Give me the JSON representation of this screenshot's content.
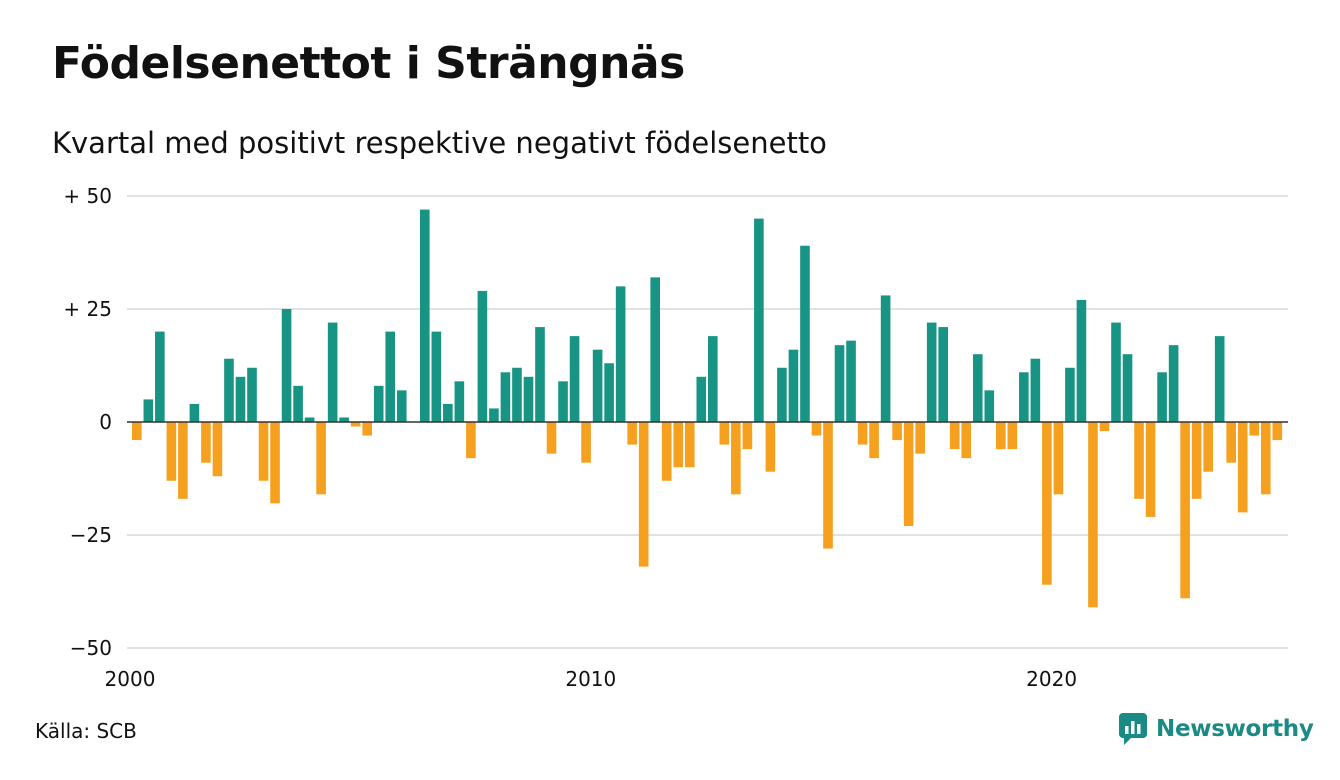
{
  "header": {
    "title": "Födelsenettot i Strängnäs",
    "subtitle": "Kvartal med positivt respektive negativt födelsenetto"
  },
  "footer": {
    "source": "Källa: SCB",
    "brand": "Newsworthy"
  },
  "colors": {
    "positive": "#179484",
    "negative": "#f5a01e",
    "brand": "#1a8a84"
  },
  "chart_data": {
    "type": "bar",
    "x_start": "2000-Q1",
    "period": "quarter",
    "ylim": [
      -50,
      50
    ],
    "yticks": [
      50,
      25,
      0,
      -25,
      -50
    ],
    "ytick_labels": [
      "+ 50",
      "+ 25",
      "0",
      "−25",
      "−50"
    ],
    "xticks": [
      2000,
      2010,
      2020
    ],
    "xtick_labels": [
      "2000",
      "2010",
      "2020"
    ],
    "grid": true,
    "values": [
      -4,
      5,
      20,
      -13,
      -17,
      4,
      -9,
      -12,
      14,
      10,
      12,
      -13,
      -18,
      25,
      8,
      1,
      -16,
      22,
      1,
      -1,
      -3,
      8,
      20,
      7,
      0,
      47,
      20,
      4,
      9,
      -8,
      29,
      3,
      11,
      12,
      10,
      21,
      -7,
      9,
      19,
      -9,
      16,
      13,
      30,
      -5,
      -32,
      32,
      -13,
      -10,
      -10,
      10,
      19,
      -5,
      -16,
      -6,
      45,
      -11,
      12,
      16,
      39,
      -3,
      -28,
      17,
      18,
      -5,
      -8,
      28,
      -4,
      -23,
      -7,
      22,
      21,
      -6,
      -8,
      15,
      7,
      -6,
      -6,
      11,
      14,
      -36,
      -16,
      12,
      27,
      -41,
      -2,
      22,
      15,
      -17,
      -21,
      11,
      17,
      -39,
      -17,
      -11,
      19,
      -9,
      -20,
      -3,
      -16,
      -4
    ]
  }
}
